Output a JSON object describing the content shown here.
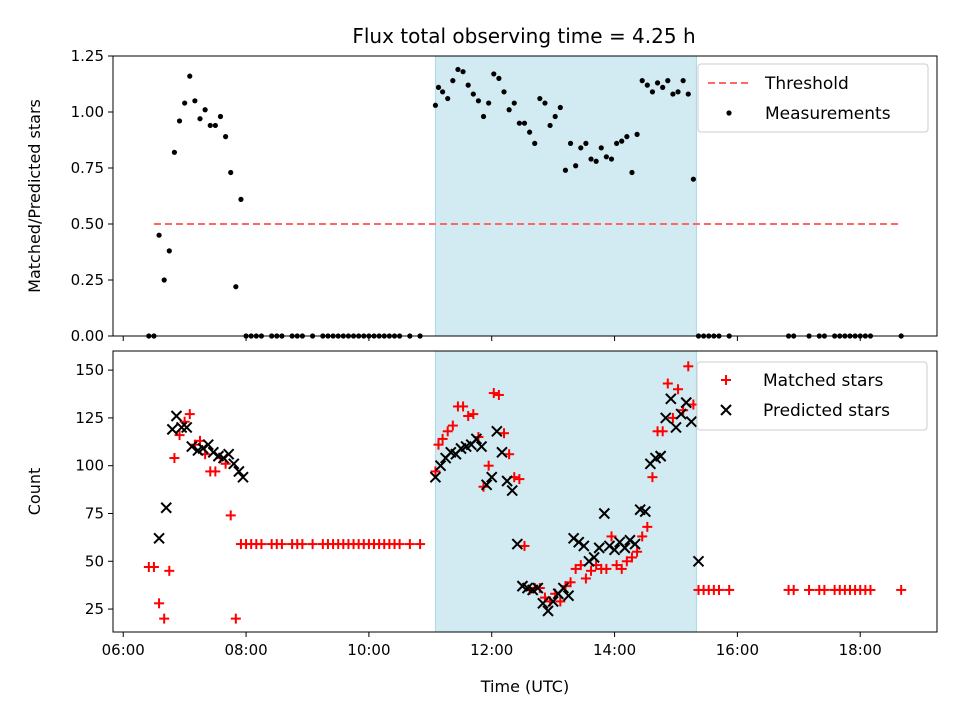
{
  "chart_data": [
    {
      "type": "scatter",
      "title": "Flux total observing time = 4.25 h",
      "xlabel": "",
      "ylabel": "Matched/Predicted stars",
      "ylim": [
        0,
        1.25
      ],
      "xlim": [
        "05:50",
        "19:15"
      ],
      "x_ticks": [
        "06:00",
        "08:00",
        "10:00",
        "12:00",
        "14:00",
        "16:00",
        "18:00"
      ],
      "x_ticks_labeled": false,
      "y_ticks": [
        "0.00",
        "0.25",
        "0.50",
        "0.75",
        "1.00",
        "1.25"
      ],
      "highlight_span": [
        "11:05",
        "15:20"
      ],
      "highlight_color": "#add8e6",
      "legend_position": "top-right",
      "threshold": {
        "name": "Threshold",
        "y": 0.5,
        "x_range": [
          "06:30",
          "18:40"
        ],
        "color": "#ff6666"
      },
      "series": [
        {
          "name": "Measurements",
          "marker": "dot",
          "color": "#000000",
          "x": [
            "06:25",
            "06:30",
            "06:35",
            "06:40",
            "06:45",
            "06:50",
            "06:55",
            "07:00",
            "07:05",
            "07:10",
            "07:15",
            "07:20",
            "07:25",
            "07:30",
            "07:35",
            "07:40",
            "07:45",
            "07:50",
            "07:55",
            "08:00",
            "08:05",
            "08:10",
            "08:15",
            "08:25",
            "08:30",
            "08:35",
            "08:45",
            "08:50",
            "08:55",
            "09:05",
            "09:15",
            "09:20",
            "09:25",
            "09:30",
            "09:35",
            "09:40",
            "09:45",
            "09:50",
            "09:55",
            "10:00",
            "10:05",
            "10:10",
            "10:15",
            "10:20",
            "10:25",
            "10:30",
            "10:40",
            "10:50",
            "11:05",
            "11:08",
            "11:12",
            "11:17",
            "11:22",
            "11:27",
            "11:32",
            "11:37",
            "11:42",
            "11:47",
            "11:52",
            "11:57",
            "12:02",
            "12:07",
            "12:12",
            "12:17",
            "12:22",
            "12:27",
            "12:32",
            "12:37",
            "12:42",
            "12:47",
            "12:52",
            "12:57",
            "13:02",
            "13:07",
            "13:12",
            "13:17",
            "13:22",
            "13:27",
            "13:32",
            "13:37",
            "13:42",
            "13:47",
            "13:52",
            "13:57",
            "14:02",
            "14:07",
            "14:12",
            "14:17",
            "14:22",
            "14:27",
            "14:32",
            "14:37",
            "14:42",
            "14:47",
            "14:52",
            "14:57",
            "15:02",
            "15:07",
            "15:12",
            "15:17",
            "15:22",
            "15:27",
            "15:32",
            "15:37",
            "15:42",
            "15:52",
            "16:50",
            "16:55",
            "17:10",
            "17:20",
            "17:25",
            "17:35",
            "17:40",
            "17:45",
            "17:50",
            "17:55",
            "18:00",
            "18:05",
            "18:10",
            "18:40"
          ],
          "y": [
            0.0,
            0.0,
            0.45,
            0.25,
            0.38,
            0.82,
            0.96,
            1.04,
            1.16,
            1.05,
            0.97,
            1.01,
            0.94,
            0.94,
            0.98,
            0.89,
            0.73,
            0.22,
            0.61,
            0.0,
            0.0,
            0.0,
            0.0,
            0.0,
            0.0,
            0.0,
            0.0,
            0.0,
            0.0,
            0.0,
            0.0,
            0.0,
            0.0,
            0.0,
            0.0,
            0.0,
            0.0,
            0.0,
            0.0,
            0.0,
            0.0,
            0.0,
            0.0,
            0.0,
            0.0,
            0.0,
            0.0,
            0.0,
            1.03,
            1.11,
            1.09,
            1.06,
            1.14,
            1.19,
            1.18,
            1.12,
            1.08,
            1.05,
            0.98,
            1.04,
            1.17,
            1.15,
            1.09,
            1.01,
            1.04,
            0.95,
            0.95,
            0.91,
            0.86,
            1.06,
            1.04,
            0.94,
            0.98,
            1.02,
            0.74,
            0.86,
            0.76,
            0.84,
            0.86,
            0.79,
            0.78,
            0.84,
            0.8,
            0.79,
            0.86,
            0.87,
            0.89,
            0.73,
            0.9,
            1.14,
            1.12,
            1.09,
            1.13,
            1.11,
            1.14,
            1.08,
            1.09,
            1.14,
            1.08,
            0.7,
            0.0,
            0.0,
            0.0,
            0.0,
            0.0,
            0.0,
            0.0,
            0.0,
            0.0,
            0.0,
            0.0,
            0.0,
            0.0,
            0.0,
            0.0,
            0.0,
            0.0,
            0.0,
            0.0,
            0.0
          ]
        }
      ]
    },
    {
      "type": "scatter",
      "title": "",
      "xlabel": "Time (UTC)",
      "ylabel": "Count",
      "ylim": [
        13,
        160
      ],
      "xlim": [
        "05:50",
        "19:15"
      ],
      "x_ticks": [
        "06:00",
        "08:00",
        "10:00",
        "12:00",
        "14:00",
        "16:00",
        "18:00"
      ],
      "y_ticks": [
        "25",
        "50",
        "75",
        "100",
        "125",
        "150"
      ],
      "highlight_span": [
        "11:05",
        "15:20"
      ],
      "highlight_color": "#add8e6",
      "legend_position": "top-right",
      "series": [
        {
          "name": "Matched stars",
          "marker": "plus",
          "color": "#ff0000",
          "x": [
            "06:25",
            "06:30",
            "06:35",
            "06:40",
            "06:45",
            "06:50",
            "06:55",
            "07:00",
            "07:05",
            "07:10",
            "07:15",
            "07:20",
            "07:25",
            "07:30",
            "07:35",
            "07:40",
            "07:45",
            "07:50",
            "07:55",
            "08:00",
            "08:05",
            "08:10",
            "08:15",
            "08:25",
            "08:30",
            "08:35",
            "08:45",
            "08:50",
            "08:55",
            "09:05",
            "09:15",
            "09:20",
            "09:25",
            "09:30",
            "09:35",
            "09:40",
            "09:45",
            "09:50",
            "09:55",
            "10:00",
            "10:05",
            "10:10",
            "10:15",
            "10:20",
            "10:25",
            "10:30",
            "10:40",
            "10:50",
            "11:05",
            "11:08",
            "11:12",
            "11:17",
            "11:22",
            "11:27",
            "11:32",
            "11:37",
            "11:42",
            "11:47",
            "11:52",
            "11:57",
            "12:02",
            "12:07",
            "12:12",
            "12:17",
            "12:22",
            "12:27",
            "12:32",
            "12:37",
            "12:42",
            "12:47",
            "12:52",
            "12:57",
            "13:02",
            "13:07",
            "13:12",
            "13:17",
            "13:22",
            "13:27",
            "13:32",
            "13:37",
            "13:42",
            "13:47",
            "13:52",
            "13:57",
            "14:02",
            "14:07",
            "14:12",
            "14:17",
            "14:22",
            "14:27",
            "14:32",
            "14:37",
            "14:42",
            "14:47",
            "14:52",
            "14:57",
            "15:02",
            "15:07",
            "15:12",
            "15:17",
            "15:22",
            "15:27",
            "15:32",
            "15:37",
            "15:42",
            "15:52",
            "16:50",
            "16:55",
            "17:10",
            "17:20",
            "17:25",
            "17:35",
            "17:40",
            "17:45",
            "17:50",
            "17:55",
            "18:00",
            "18:05",
            "18:10",
            "18:40"
          ],
          "y": [
            47,
            47,
            28,
            20,
            45,
            104,
            116,
            123,
            127,
            111,
            113,
            106,
            97,
            97,
            104,
            101,
            74,
            20,
            59,
            59,
            59,
            59,
            59,
            59,
            59,
            59,
            59,
            59,
            59,
            59,
            59,
            59,
            59,
            59,
            59,
            59,
            59,
            59,
            59,
            59,
            59,
            59,
            59,
            59,
            59,
            59,
            59,
            59,
            97,
            111,
            114,
            118,
            121,
            131,
            131,
            126,
            127,
            115,
            89,
            100,
            138,
            137,
            117,
            106,
            94,
            93,
            58,
            35,
            36,
            36,
            31,
            29,
            33,
            29,
            37,
            39,
            46,
            48,
            41,
            45,
            48,
            46,
            46,
            63,
            48,
            46,
            50,
            52,
            55,
            63,
            68,
            94,
            118,
            118,
            143,
            125,
            140,
            129,
            152,
            132,
            35,
            35,
            35,
            35,
            35,
            35,
            35,
            35,
            35,
            35,
            35,
            35,
            35,
            35,
            35,
            35,
            35,
            35,
            35,
            35
          ]
        },
        {
          "name": "Predicted stars",
          "marker": "x",
          "color": "#000000",
          "x": [
            "06:35",
            "06:42",
            "06:48",
            "06:52",
            "06:57",
            "07:02",
            "07:07",
            "07:13",
            "07:18",
            "07:23",
            "07:28",
            "07:33",
            "07:38",
            "07:43",
            "07:48",
            "07:53",
            "07:57",
            "11:05",
            "11:10",
            "11:15",
            "11:20",
            "11:25",
            "11:30",
            "11:35",
            "11:40",
            "11:45",
            "11:50",
            "11:55",
            "12:00",
            "12:05",
            "12:10",
            "12:15",
            "12:20",
            "12:25",
            "12:30",
            "12:35",
            "12:40",
            "12:45",
            "12:50",
            "12:55",
            "13:00",
            "13:05",
            "13:10",
            "13:15",
            "13:20",
            "13:25",
            "13:30",
            "13:35",
            "13:40",
            "13:45",
            "13:50",
            "13:55",
            "14:00",
            "14:05",
            "14:10",
            "14:15",
            "14:20",
            "14:25",
            "14:30",
            "14:35",
            "14:40",
            "14:45",
            "14:50",
            "14:55",
            "15:00",
            "15:05",
            "15:10",
            "15:15",
            "15:22"
          ],
          "y": [
            62,
            78,
            119,
            126,
            120,
            120,
            110,
            108,
            109,
            111,
            107,
            105,
            104,
            106,
            101,
            97,
            94,
            94,
            100,
            104,
            107,
            106,
            109,
            110,
            111,
            114,
            110,
            90,
            94,
            118,
            107,
            92,
            87,
            59,
            37,
            36,
            35,
            36,
            28,
            24,
            29,
            33,
            36,
            32,
            62,
            60,
            58,
            50,
            52,
            57,
            75,
            58,
            56,
            60,
            57,
            61,
            59,
            77,
            76,
            101,
            104,
            105,
            125,
            135,
            120,
            127,
            133,
            123,
            50
          ]
        }
      ]
    }
  ]
}
